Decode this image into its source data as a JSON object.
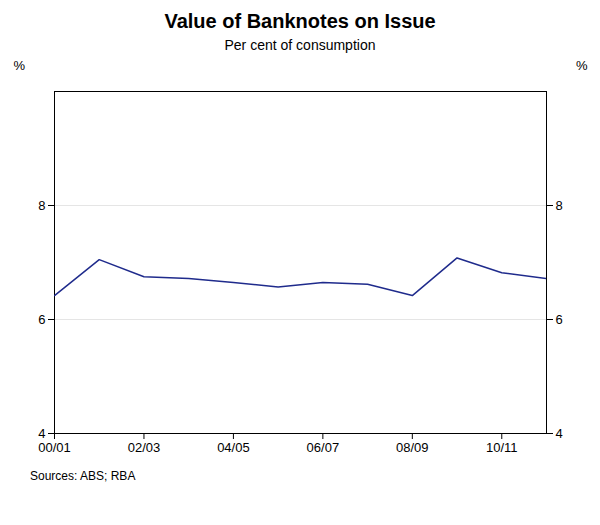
{
  "chart_data": {
    "type": "line",
    "title": "Value of Banknotes on Issue",
    "subtitle": "Per cent of consumption",
    "source": "Sources: ABS; RBA",
    "x": [
      0,
      1,
      2,
      3,
      4,
      5,
      6,
      7,
      8,
      9,
      10,
      11
    ],
    "values": [
      6.42,
      7.05,
      6.75,
      6.72,
      6.65,
      6.57,
      6.65,
      6.62,
      6.42,
      7.08,
      6.82,
      6.72
    ],
    "color": "#1f2b8c",
    "xlim": [
      0,
      11
    ],
    "xticks": [
      {
        "value": 0,
        "label": "00/01"
      },
      {
        "value": 2,
        "label": "02/03"
      },
      {
        "value": 4,
        "label": "04/05"
      },
      {
        "value": 6,
        "label": "06/07"
      },
      {
        "value": 8,
        "label": "08/09"
      },
      {
        "value": 10,
        "label": "10/11"
      }
    ],
    "ylim": [
      4,
      10
    ],
    "yticks": [
      4,
      6,
      8
    ],
    "ylabel": "%",
    "y2lim": [
      4,
      10
    ],
    "y2ticks": [
      4,
      6,
      8
    ],
    "y2label": "%",
    "grid": true
  }
}
